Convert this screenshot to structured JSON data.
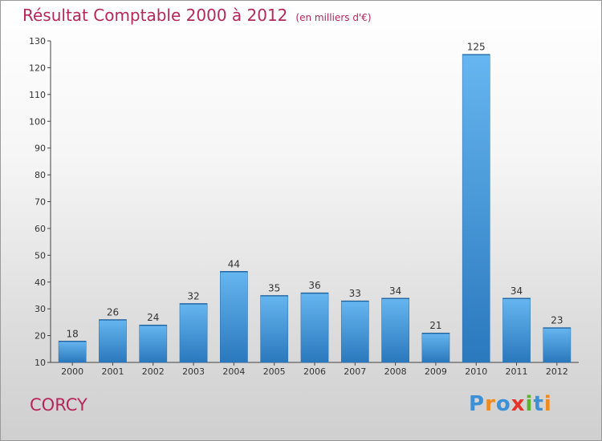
{
  "chart_data": {
    "type": "bar",
    "title": "Résultat Comptable 2000 à 2012",
    "subtitle": "(en milliers d'€)",
    "categories": [
      "2000",
      "2001",
      "2002",
      "2003",
      "2004",
      "2005",
      "2006",
      "2007",
      "2008",
      "2009",
      "2010",
      "2011",
      "2012"
    ],
    "values": [
      18,
      26,
      24,
      32,
      44,
      35,
      36,
      33,
      34,
      21,
      125,
      34,
      23
    ],
    "ylim": [
      10,
      130
    ],
    "yticks": [
      10,
      20,
      30,
      40,
      50,
      60,
      70,
      80,
      90,
      100,
      110,
      120,
      130
    ],
    "grid": false,
    "bar_color": "#3d95de",
    "bar_color_dark": "#2a78bd",
    "bar_color_light": "#66b6f0"
  },
  "footer": {
    "commune": "CORCY",
    "logo": {
      "letters": [
        "P",
        "r",
        "o",
        "x",
        "i",
        "t",
        "i"
      ],
      "colors": [
        "#3d8fd6",
        "#f08a1c",
        "#3d8fd6",
        "#e2342b",
        "#5ab52e",
        "#3d8fd6",
        "#f08a1c"
      ]
    }
  }
}
